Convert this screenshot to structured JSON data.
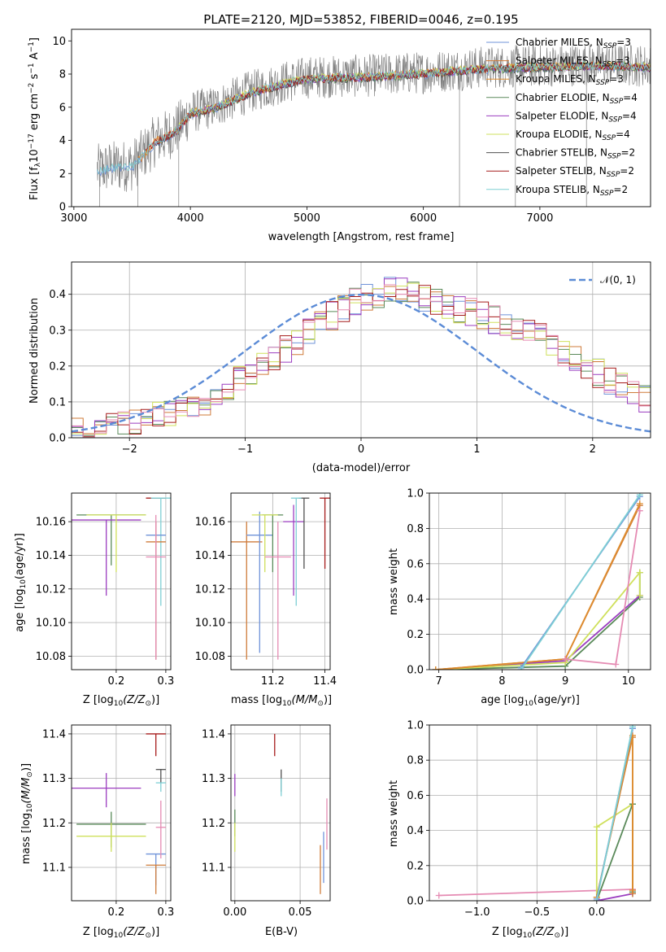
{
  "colors": {
    "data_grey": "#808080",
    "grid": "#b0b0b0",
    "gauss": "#5b8bd6",
    "chabrier_miles": "#6f93d9",
    "salpeter_miles": "#cf7b3a",
    "kroupa_miles": "#de8c2e",
    "chabrier_elodie": "#5a8a5a",
    "salpeter_elodie": "#9b3dc0",
    "kroupa_elodie": "#cfe05c",
    "chabrier_stelib": "#505050",
    "salpeter_stelib": "#a61b1b",
    "kroupa_stelib": "#7ecfd4",
    "pink": "#e58bb3"
  },
  "chart_data": [
    {
      "id": "spectrum",
      "type": "line",
      "title": "PLATE=2120, MJD=53852, FIBERID=0046, z=0.195",
      "xlabel": "wavelength [Angstrom, rest frame]",
      "ylabel_main": "Flux [f",
      "ylabel_sub1": "λ",
      "ylabel_mid": "10",
      "ylabel_sup1": "−17",
      "ylabel_mid2": " erg cm",
      "ylabel_sup2": "−2",
      "ylabel_mid3": " s",
      "ylabel_sup3": "−1",
      "ylabel_mid4": " A",
      "ylabel_sup4": "−1",
      "ylabel_end": "]",
      "xlim": [
        2980,
        7950
      ],
      "ylim": [
        0,
        10.7
      ],
      "xticks": [
        3000,
        4000,
        5000,
        6000,
        7000
      ],
      "yticks": [
        0,
        2,
        4,
        6,
        8,
        10
      ],
      "model_trend": {
        "x": [
          3200,
          3300,
          3500,
          3600,
          3700,
          3800,
          3900,
          4000,
          4200,
          4500,
          4800,
          5000,
          5500,
          6000,
          6500,
          7000,
          7500,
          7950
        ],
        "y": [
          2.2,
          2.4,
          2.5,
          3.2,
          4.0,
          4.3,
          4.8,
          5.7,
          6.0,
          6.9,
          7.5,
          7.8,
          7.9,
          8.1,
          8.4,
          8.5,
          8.6,
          8.5
        ]
      },
      "legend": [
        {
          "model": "Chabrier MILES",
          "n": "3",
          "color_key": "chabrier_miles"
        },
        {
          "model": "Salpeter MILES",
          "n": "3",
          "color_key": "salpeter_miles"
        },
        {
          "model": "Kroupa MILES",
          "n": "3",
          "color_key": "kroupa_miles"
        },
        {
          "model": "Chabrier ELODIE",
          "n": "4",
          "color_key": "chabrier_elodie"
        },
        {
          "model": "Salpeter ELODIE",
          "n": "4",
          "color_key": "salpeter_elodie"
        },
        {
          "model": "Kroupa ELODIE",
          "n": "4",
          "color_key": "kroupa_elodie"
        },
        {
          "model": "Chabrier STELIB",
          "n": "2",
          "color_key": "chabrier_stelib"
        },
        {
          "model": "Salpeter STELIB",
          "n": "2",
          "color_key": "salpeter_stelib"
        },
        {
          "model": "Kroupa STELIB",
          "n": "2",
          "color_key": "kroupa_stelib"
        }
      ],
      "legend_prefix": ", N",
      "legend_sub": "SSP",
      "legend_suffix": "="
    },
    {
      "id": "residuals",
      "type": "histogram",
      "xlabel": "(data-model)/error",
      "ylabel": "Normed distribution",
      "xlim": [
        -2.5,
        2.5
      ],
      "ylim": [
        0,
        0.49
      ],
      "xticks": [
        -2,
        -1,
        0,
        1,
        2
      ],
      "yticks": [
        0.0,
        0.1,
        0.2,
        0.3,
        0.4
      ],
      "ytick_labels": [
        "0.0",
        "0.1",
        "0.2",
        "0.3",
        "0.4"
      ],
      "legend": "𝒩(0, 1)",
      "bin_width": 0.1,
      "bin_start": -2.5,
      "profile": [
        0.02,
        0.02,
        0.025,
        0.03,
        0.035,
        0.04,
        0.05,
        0.06,
        0.07,
        0.08,
        0.09,
        0.1,
        0.12,
        0.14,
        0.16,
        0.18,
        0.2,
        0.22,
        0.25,
        0.27,
        0.3,
        0.32,
        0.34,
        0.36,
        0.38,
        0.39,
        0.4,
        0.41,
        0.41,
        0.4,
        0.39,
        0.38,
        0.37,
        0.36,
        0.35,
        0.34,
        0.33,
        0.32,
        0.31,
        0.3,
        0.28,
        0.26,
        0.24,
        0.22,
        0.2,
        0.18,
        0.16,
        0.14,
        0.12,
        0.11,
        0.1
      ],
      "series_colors": [
        "chabrier_miles",
        "salpeter_miles",
        "chabrier_elodie",
        "salpeter_elodie",
        "kroupa_elodie",
        "salpeter_stelib",
        "pink"
      ]
    },
    {
      "id": "age_vs_Z",
      "type": "errorbar",
      "xlabel_main": "Z [log",
      "xlabel_sub": "10",
      "xlabel_end": "(Z/Z",
      "xlabel_close": ")]",
      "ylabel_main": "age  [log",
      "ylabel_sub": "10",
      "ylabel_end": "(age/yr)]",
      "xlim": [
        0.11,
        0.31
      ],
      "ylim": [
        10.072,
        10.177
      ],
      "xticks": [
        0.2,
        0.3
      ],
      "xtick_labels": [
        "0.2",
        "0.3"
      ],
      "yticks": [
        10.08,
        10.1,
        10.12,
        10.14,
        10.16
      ],
      "ytick_labels": [
        "10.08",
        "10.10",
        "10.12",
        "10.14",
        "10.16"
      ],
      "points": [
        {
          "x": 0.19,
          "xerr": 0.07,
          "y": 10.164,
          "ylo": 10.134,
          "yhi": 10.164,
          "c": "chabrier_elodie"
        },
        {
          "x": 0.18,
          "xerr": 0.07,
          "y": 10.161,
          "ylo": 10.116,
          "yhi": 10.161,
          "c": "salpeter_elodie"
        },
        {
          "x": 0.2,
          "xerr": 0.06,
          "y": 10.164,
          "ylo": 10.13,
          "yhi": 10.164,
          "c": "kroupa_elodie"
        },
        {
          "x": 0.28,
          "xerr": 0.02,
          "y": 10.174,
          "ylo": 10.174,
          "yhi": 10.174,
          "c": "salpeter_stelib"
        },
        {
          "x": 0.29,
          "xerr": 0.02,
          "y": 10.174,
          "ylo": 10.11,
          "yhi": 10.174,
          "c": "kroupa_stelib"
        },
        {
          "x": 0.28,
          "xerr": 0.02,
          "y": 10.152,
          "ylo": 10.078,
          "yhi": 10.16,
          "c": "chabrier_miles"
        },
        {
          "x": 0.28,
          "xerr": 0.02,
          "y": 10.148,
          "ylo": 10.078,
          "yhi": 10.16,
          "c": "salpeter_miles"
        },
        {
          "x": 0.28,
          "xerr": 0.02,
          "y": 10.139,
          "ylo": 10.078,
          "yhi": 10.164,
          "c": "pink"
        }
      ]
    },
    {
      "id": "age_vs_mass",
      "type": "errorbar",
      "xlabel_main": "mass [log",
      "xlabel_sub": "10",
      "xlabel_end": "(M/M",
      "xlabel_close": ")]",
      "xlim": [
        11.04,
        11.42
      ],
      "ylim": [
        10.072,
        10.177
      ],
      "xticks": [
        11.2,
        11.4
      ],
      "xtick_labels": [
        "11.2",
        "11.4"
      ],
      "yticks": [
        10.08,
        10.1,
        10.12,
        10.14,
        10.16
      ],
      "ytick_labels": [
        "10.08",
        "10.10",
        "10.12",
        "10.14",
        "10.16"
      ],
      "points": [
        {
          "x": 11.1,
          "xerr": 0.06,
          "y": 10.148,
          "ylo": 10.078,
          "yhi": 10.16,
          "c": "salpeter_miles"
        },
        {
          "x": 11.15,
          "xerr": 0.05,
          "y": 10.152,
          "ylo": 10.082,
          "yhi": 10.166,
          "c": "chabrier_miles"
        },
        {
          "x": 11.2,
          "xerr": 0.04,
          "y": 10.164,
          "ylo": 10.13,
          "yhi": 10.164,
          "c": "chabrier_elodie"
        },
        {
          "x": 11.17,
          "xerr": 0.05,
          "y": 10.164,
          "ylo": 10.13,
          "yhi": 10.164,
          "c": "kroupa_elodie"
        },
        {
          "x": 11.28,
          "xerr": 0.04,
          "y": 10.16,
          "ylo": 10.116,
          "yhi": 10.17,
          "c": "salpeter_elodie"
        },
        {
          "x": 11.22,
          "xerr": 0.05,
          "y": 10.139,
          "ylo": 10.078,
          "yhi": 10.16,
          "c": "pink"
        },
        {
          "x": 11.32,
          "xerr": 0.02,
          "y": 10.174,
          "ylo": 10.132,
          "yhi": 10.174,
          "c": "chabrier_stelib"
        },
        {
          "x": 11.4,
          "xerr": 0.02,
          "y": 10.174,
          "ylo": 10.132,
          "yhi": 10.174,
          "c": "salpeter_stelib"
        },
        {
          "x": 11.29,
          "xerr": 0.02,
          "y": 10.174,
          "ylo": 10.11,
          "yhi": 10.174,
          "c": "kroupa_stelib"
        }
      ]
    },
    {
      "id": "massweight_vs_age",
      "type": "line",
      "xlabel_main": "age  [log",
      "xlabel_sub": "10",
      "xlabel_end": "(age/yr)]",
      "ylabel": "mass weight",
      "xlim": [
        6.85,
        10.35
      ],
      "ylim": [
        0,
        1.0
      ],
      "xticks": [
        7,
        8,
        9,
        10
      ],
      "yticks": [
        0.0,
        0.2,
        0.4,
        0.6,
        0.8,
        1.0
      ],
      "ytick_labels": [
        "0.0",
        "0.2",
        "0.4",
        "0.6",
        "0.8",
        "1.0"
      ],
      "series": [
        {
          "c": "chabrier_elodie",
          "x": [
            6.95,
            9.0,
            10.18,
            10.18
          ],
          "y": [
            0.0,
            0.02,
            0.41,
            0.55
          ]
        },
        {
          "c": "salpeter_elodie",
          "x": [
            6.95,
            9.0,
            10.18
          ],
          "y": [
            0.0,
            0.05,
            0.42
          ]
        },
        {
          "c": "kroupa_elodie",
          "x": [
            6.95,
            9.0,
            10.18,
            10.18
          ],
          "y": [
            0.0,
            0.04,
            0.55,
            0.42
          ]
        },
        {
          "c": "salpeter_miles",
          "x": [
            6.95,
            9.0,
            10.18
          ],
          "y": [
            0.0,
            0.06,
            0.93
          ]
        },
        {
          "c": "kroupa_miles",
          "x": [
            6.95,
            9.0,
            10.18
          ],
          "y": [
            0.0,
            0.06,
            0.94
          ]
        },
        {
          "c": "pink",
          "x": [
            9.0,
            9.8,
            10.18
          ],
          "y": [
            0.06,
            0.03,
            0.9
          ]
        },
        {
          "c": "chabrier_miles",
          "x": [
            8.3,
            10.18
          ],
          "y": [
            0.01,
            0.98
          ]
        },
        {
          "c": "kroupa_stelib",
          "x": [
            8.3,
            10.18
          ],
          "y": [
            0.0,
            0.99
          ]
        }
      ]
    },
    {
      "id": "mass_vs_Z",
      "type": "errorbar",
      "xlabel_main": "Z [log",
      "xlabel_sub": "10",
      "xlabel_end": "(Z/Z",
      "xlabel_close": ")]",
      "ylabel_main": "mass [log",
      "ylabel_sub": "10",
      "ylabel_end": "(M/M",
      "ylabel_close": ")]",
      "xlim": [
        0.11,
        0.31
      ],
      "ylim": [
        11.025,
        11.42
      ],
      "xticks": [
        0.2,
        0.3
      ],
      "xtick_labels": [
        "0.2",
        "0.3"
      ],
      "yticks": [
        11.1,
        11.2,
        11.3,
        11.4
      ],
      "ytick_labels": [
        "11.1",
        "11.2",
        "11.3",
        "11.4"
      ],
      "points": [
        {
          "x": 0.19,
          "xerr": 0.07,
          "y": 11.197,
          "ylo": 11.145,
          "yhi": 11.225,
          "c": "chabrier_elodie"
        },
        {
          "x": 0.18,
          "xerr": 0.07,
          "y": 11.278,
          "ylo": 11.235,
          "yhi": 11.312,
          "c": "salpeter_elodie"
        },
        {
          "x": 0.19,
          "xerr": 0.07,
          "y": 11.17,
          "ylo": 11.135,
          "yhi": 11.2,
          "c": "kroupa_elodie"
        },
        {
          "x": 0.28,
          "xerr": 0.02,
          "y": 11.4,
          "ylo": 11.35,
          "yhi": 11.4,
          "c": "salpeter_stelib"
        },
        {
          "x": 0.29,
          "xerr": 0.01,
          "y": 11.32,
          "ylo": 11.29,
          "yhi": 11.32,
          "c": "chabrier_stelib"
        },
        {
          "x": 0.29,
          "xerr": 0.01,
          "y": 11.29,
          "ylo": 11.27,
          "yhi": 11.29,
          "c": "kroupa_stelib"
        },
        {
          "x": 0.28,
          "xerr": 0.02,
          "y": 11.13,
          "ylo": 11.06,
          "yhi": 11.13,
          "c": "chabrier_miles"
        },
        {
          "x": 0.28,
          "xerr": 0.02,
          "y": 11.105,
          "ylo": 11.04,
          "yhi": 11.105,
          "c": "salpeter_miles"
        },
        {
          "x": 0.29,
          "xerr": 0.01,
          "y": 11.19,
          "ylo": 11.12,
          "yhi": 11.25,
          "c": "pink"
        }
      ]
    },
    {
      "id": "mass_vs_EBV",
      "type": "errorbar",
      "xlabel": "E(B-V)",
      "xlim": [
        -0.003,
        0.073
      ],
      "ylim": [
        11.025,
        11.42
      ],
      "xticks": [
        0.0,
        0.05
      ],
      "xtick_labels": [
        "0.00",
        "0.05"
      ],
      "yticks": [
        11.1,
        11.2,
        11.3,
        11.4
      ],
      "ytick_labels": [
        "11.1",
        "11.2",
        "11.3",
        "11.4"
      ],
      "points": [
        {
          "x": 0.0,
          "xerr": 0,
          "y": 11.28,
          "ylo": 11.26,
          "yhi": 11.31,
          "c": "salpeter_elodie"
        },
        {
          "x": 0.0,
          "xerr": 0,
          "y": 11.2,
          "ylo": 11.17,
          "yhi": 11.23,
          "c": "chabrier_elodie"
        },
        {
          "x": 0.0,
          "xerr": 0,
          "y": 11.17,
          "ylo": 11.135,
          "yhi": 11.2,
          "c": "kroupa_elodie"
        },
        {
          "x": 0.0305,
          "xerr": 0,
          "y": 11.4,
          "ylo": 11.35,
          "yhi": 11.4,
          "c": "salpeter_stelib"
        },
        {
          "x": 0.0355,
          "xerr": 0,
          "y": 11.3,
          "ylo": 11.27,
          "yhi": 11.32,
          "c": "chabrier_stelib"
        },
        {
          "x": 0.0355,
          "xerr": 0,
          "y": 11.28,
          "ylo": 11.26,
          "yhi": 11.3,
          "c": "kroupa_stelib"
        },
        {
          "x": 0.0655,
          "xerr": 0,
          "y": 11.105,
          "ylo": 11.04,
          "yhi": 11.15,
          "c": "salpeter_miles"
        },
        {
          "x": 0.068,
          "xerr": 0,
          "y": 11.13,
          "ylo": 11.065,
          "yhi": 11.18,
          "c": "chabrier_miles"
        },
        {
          "x": 0.0705,
          "xerr": 0,
          "y": 11.2,
          "ylo": 11.14,
          "yhi": 11.255,
          "c": "pink"
        }
      ]
    },
    {
      "id": "massweight_vs_Z",
      "type": "line",
      "xlabel_main": "Z [log",
      "xlabel_sub": "10",
      "xlabel_end": "(Z/Z",
      "xlabel_close": ")]",
      "ylabel": "mass weight",
      "xlim": [
        -1.4,
        0.45
      ],
      "ylim": [
        0,
        1.0
      ],
      "xticks": [
        -1.0,
        -0.5,
        0.0
      ],
      "xtick_labels": [
        "−1.0",
        "−0.5",
        "0.0"
      ],
      "yticks": [
        0.0,
        0.2,
        0.4,
        0.6,
        0.8,
        1.0
      ],
      "ytick_labels": [
        "0.0",
        "0.2",
        "0.4",
        "0.6",
        "0.8",
        "1.0"
      ],
      "series": [
        {
          "c": "pink",
          "x": [
            -1.32,
            0.3
          ],
          "y": [
            0.03,
            0.065
          ]
        },
        {
          "c": "kroupa_elodie",
          "x": [
            0.0,
            0.0,
            0.3,
            0.3
          ],
          "y": [
            0.0,
            0.42,
            0.55,
            0.04
          ]
        },
        {
          "c": "chabrier_elodie",
          "x": [
            0.0,
            0.3,
            0.3
          ],
          "y": [
            0.0,
            0.55,
            0.05
          ]
        },
        {
          "c": "salpeter_elodie",
          "x": [
            0.0,
            0.3
          ],
          "y": [
            0.0,
            0.04
          ]
        },
        {
          "c": "salpeter_miles",
          "x": [
            0.0,
            0.3,
            0.3
          ],
          "y": [
            0.02,
            0.93,
            0.04
          ]
        },
        {
          "c": "kroupa_miles",
          "x": [
            0.0,
            0.3,
            0.3
          ],
          "y": [
            0.02,
            0.94,
            0.06
          ]
        },
        {
          "c": "chabrier_miles",
          "x": [
            0.0,
            0.3
          ],
          "y": [
            0.01,
            0.98
          ]
        },
        {
          "c": "kroupa_stelib",
          "x": [
            0.0,
            0.3
          ],
          "y": [
            0.0,
            0.99
          ]
        }
      ]
    }
  ]
}
